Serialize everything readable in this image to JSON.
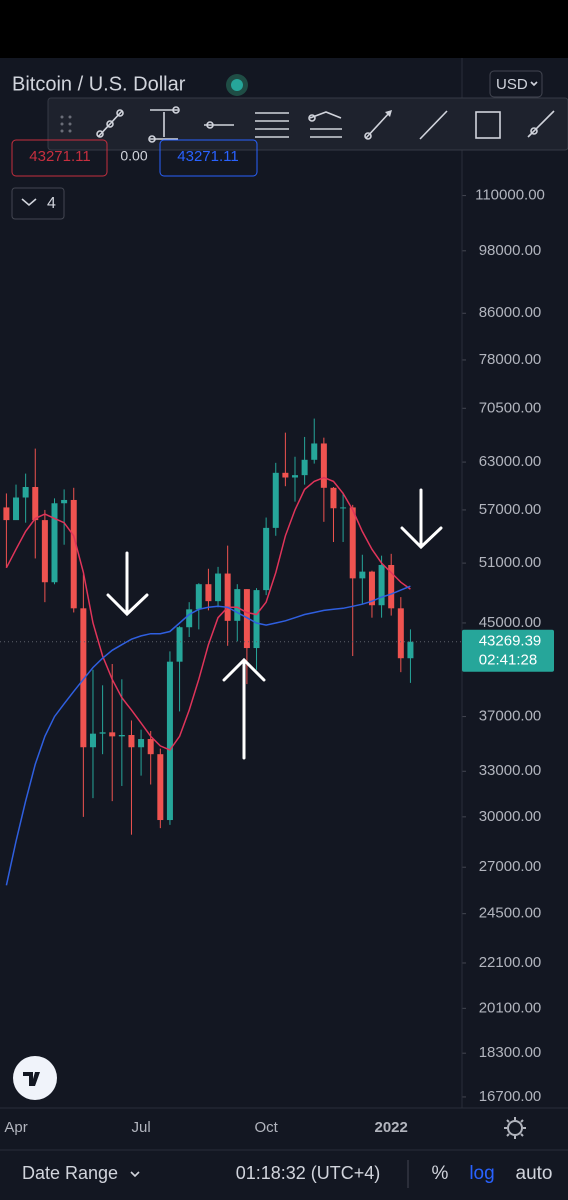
{
  "header": {
    "symbol": "Bitcoin / U.S. Dollar",
    "currency": "USD",
    "sell": "43271.11",
    "spread": "0.00",
    "buy": "43271.11",
    "indicators": "4"
  },
  "chart_data": {
    "type": "candlestick",
    "categories": [
      null,
      "Apr",
      null,
      null,
      null,
      null,
      null,
      null,
      null,
      null,
      null,
      null,
      null,
      null,
      "Jul",
      null,
      null,
      null,
      null,
      null,
      null,
      null,
      null,
      null,
      null,
      null,
      null,
      "Oct",
      null,
      null,
      null,
      null,
      null,
      null,
      null,
      null,
      null,
      null,
      null,
      null,
      "2022",
      null,
      null
    ],
    "open": [
      57300,
      55800,
      58500,
      59800,
      55800,
      49000,
      57800,
      58200,
      46400,
      34700,
      35700,
      35800,
      35500,
      35600,
      34700,
      35300,
      34200,
      29800,
      41500,
      44600,
      46300,
      48800,
      47100,
      49900,
      45200,
      48300,
      42700,
      48200,
      54900,
      61600,
      61000,
      61300,
      63300,
      65500,
      59700,
      57200,
      57300,
      49400,
      50100,
      46700,
      50800,
      46400,
      41800
    ],
    "high": [
      59000,
      60100,
      61500,
      64800,
      57000,
      58400,
      59500,
      59700,
      49800,
      40800,
      39500,
      41300,
      40000,
      36700,
      36000,
      35900,
      34600,
      42400,
      44700,
      47000,
      48900,
      50400,
      50600,
      52900,
      48800,
      48300,
      48400,
      56100,
      62900,
      67000,
      63700,
      66400,
      69000,
      66300,
      59800,
      59100,
      57600,
      51900,
      50200,
      51800,
      52000,
      47500,
      44400
    ],
    "low": [
      50500,
      56000,
      55500,
      51500,
      47000,
      48800,
      53000,
      46000,
      30000,
      31200,
      34200,
      31000,
      32000,
      28900,
      32700,
      32100,
      29300,
      29500,
      37400,
      43700,
      44400,
      46200,
      46500,
      42900,
      43300,
      39600,
      40800,
      47700,
      54000,
      59900,
      58000,
      60100,
      62800,
      55600,
      53300,
      53300,
      42000,
      46800,
      45500,
      45500,
      45700,
      40600,
      39700
    ],
    "close": [
      55800,
      58500,
      59800,
      55800,
      49000,
      57800,
      58200,
      46400,
      34700,
      35700,
      35800,
      35500,
      35600,
      34700,
      35300,
      34200,
      29800,
      41500,
      44600,
      46300,
      48800,
      47100,
      49900,
      45200,
      48300,
      42700,
      48200,
      54900,
      61600,
      61000,
      61300,
      63300,
      65500,
      59700,
      57200,
      57300,
      49400,
      50100,
      46700,
      50800,
      46400,
      41800,
      43270
    ],
    "up_color": "#26a69a",
    "down_color": "#ef5350",
    "series": [
      {
        "color": "#e0345a",
        "values": [
          50500,
          52500,
          54500,
          56000,
          56500,
          56000,
          55500,
          54000,
          50000,
          45000,
          42000,
          40000,
          38500,
          37500,
          36500,
          35500,
          34800,
          34500,
          35500,
          37500,
          40000,
          43000,
          45500,
          46500,
          46500,
          46000,
          45800,
          47000,
          50000,
          54000,
          57000,
          59500,
          60500,
          61000,
          60500,
          59000,
          57000,
          54500,
          52500,
          51000,
          50000,
          49000,
          48300
        ]
      },
      {
        "color": "#2f5fe0",
        "values": [
          26000,
          28500,
          31000,
          33500,
          35500,
          37000,
          38000,
          39000,
          40000,
          41000,
          41800,
          42500,
          43000,
          43500,
          43800,
          44000,
          44000,
          44200,
          45000,
          45800,
          46300,
          46500,
          46600,
          46500,
          46000,
          45500,
          45000,
          44800,
          45000,
          45200,
          45500,
          45800,
          46000,
          46200,
          46300,
          46400,
          46600,
          46800,
          47100,
          47500,
          47800,
          48200,
          48600
        ]
      }
    ],
    "log_scale": true,
    "ylim": [
      16250,
      121000
    ],
    "yticks": [
      {
        "value": 110000,
        "label": "110000.00"
      },
      {
        "value": 98000,
        "label": "98000.00"
      },
      {
        "value": 86000,
        "label": "86000.00"
      },
      {
        "value": 78000,
        "label": "78000.00"
      },
      {
        "value": 70500,
        "label": "70500.00"
      },
      {
        "value": 63000,
        "label": "63000.00"
      },
      {
        "value": 57000,
        "label": "57000.00"
      },
      {
        "value": 51000,
        "label": "51000.00"
      },
      {
        "value": 45000,
        "label": "45000.00"
      },
      {
        "value": 37000,
        "label": "37000.00"
      },
      {
        "value": 33000,
        "label": "33000.00"
      },
      {
        "value": 30000,
        "label": "30000.00"
      },
      {
        "value": 27000,
        "label": "27000.00"
      },
      {
        "value": 24500,
        "label": "24500.00"
      },
      {
        "value": 22100,
        "label": "22100.00"
      },
      {
        "value": 20100,
        "label": "20100.00"
      },
      {
        "value": 18300,
        "label": "18300.00"
      },
      {
        "value": 16700,
        "label": "16700.00"
      }
    ],
    "last_price": 43269.39,
    "countdown": "02:41:28"
  },
  "footer": {
    "date_range": "Date Range",
    "clock": "01:18:32 (UTC+4)",
    "percent": "%",
    "log": "log",
    "auto": "auto"
  }
}
